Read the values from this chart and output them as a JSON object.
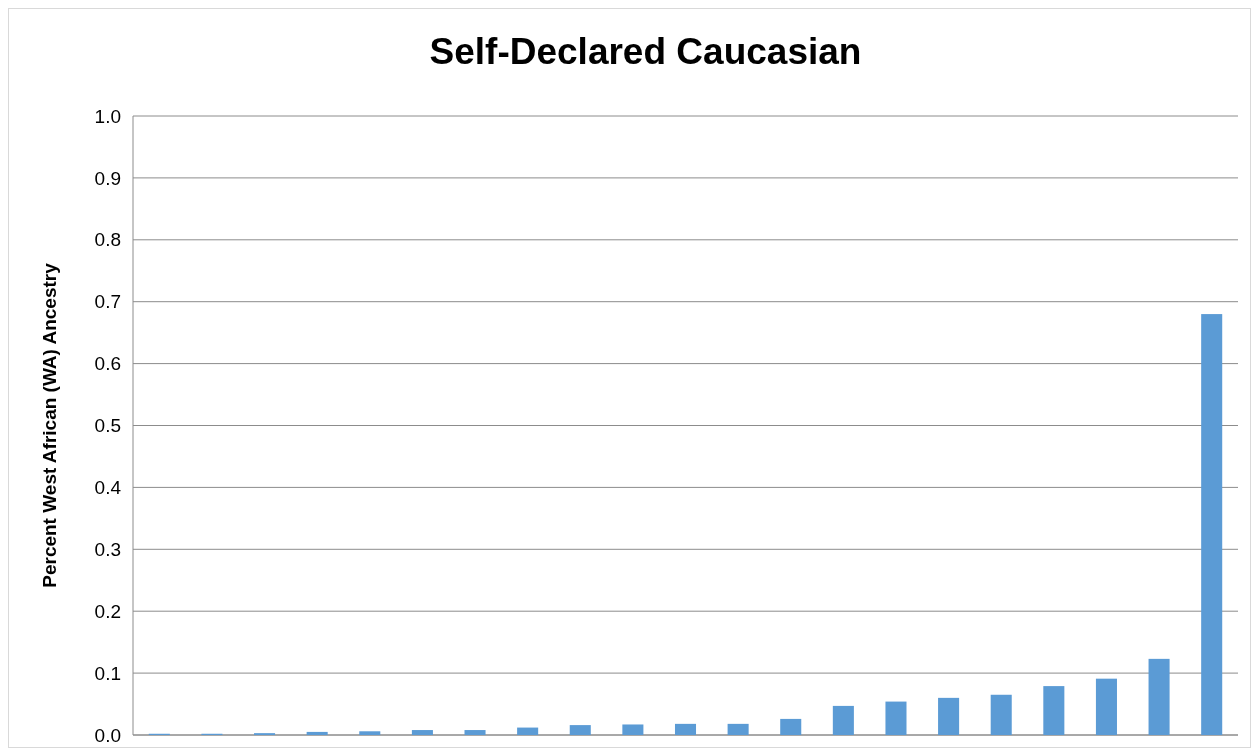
{
  "chart_data": {
    "type": "bar",
    "title": "Self-Declared Caucasian",
    "ylabel": "Percent West African (WA) Ancestry",
    "categories": [
      null,
      null,
      null,
      null,
      null,
      null,
      null,
      null,
      null,
      null,
      null,
      null,
      null,
      null,
      null,
      null,
      null,
      null,
      null,
      null,
      null
    ],
    "values": [
      0.002,
      0.002,
      0.003,
      0.005,
      0.006,
      0.008,
      0.008,
      0.012,
      0.016,
      0.017,
      0.018,
      0.018,
      0.026,
      0.047,
      0.054,
      0.06,
      0.065,
      0.079,
      0.091,
      0.123,
      0.68
    ],
    "color": "#5b9bd5",
    "ylim": [
      0,
      1
    ],
    "yticks": [
      {
        "value": 0,
        "label": "0.0"
      },
      {
        "value": 0.1,
        "label": "0.1"
      },
      {
        "value": 0.2,
        "label": "0.2"
      },
      {
        "value": 0.3,
        "label": "0.3"
      },
      {
        "value": 0.4,
        "label": "0.4"
      },
      {
        "value": 0.5,
        "label": "0.5"
      },
      {
        "value": 0.6,
        "label": "0.6"
      },
      {
        "value": 0.7,
        "label": "0.7"
      },
      {
        "value": 0.8,
        "label": "0.8"
      },
      {
        "value": 0.9,
        "label": "0.9"
      },
      {
        "value": 1,
        "label": "1.0"
      }
    ],
    "grid": "y"
  }
}
